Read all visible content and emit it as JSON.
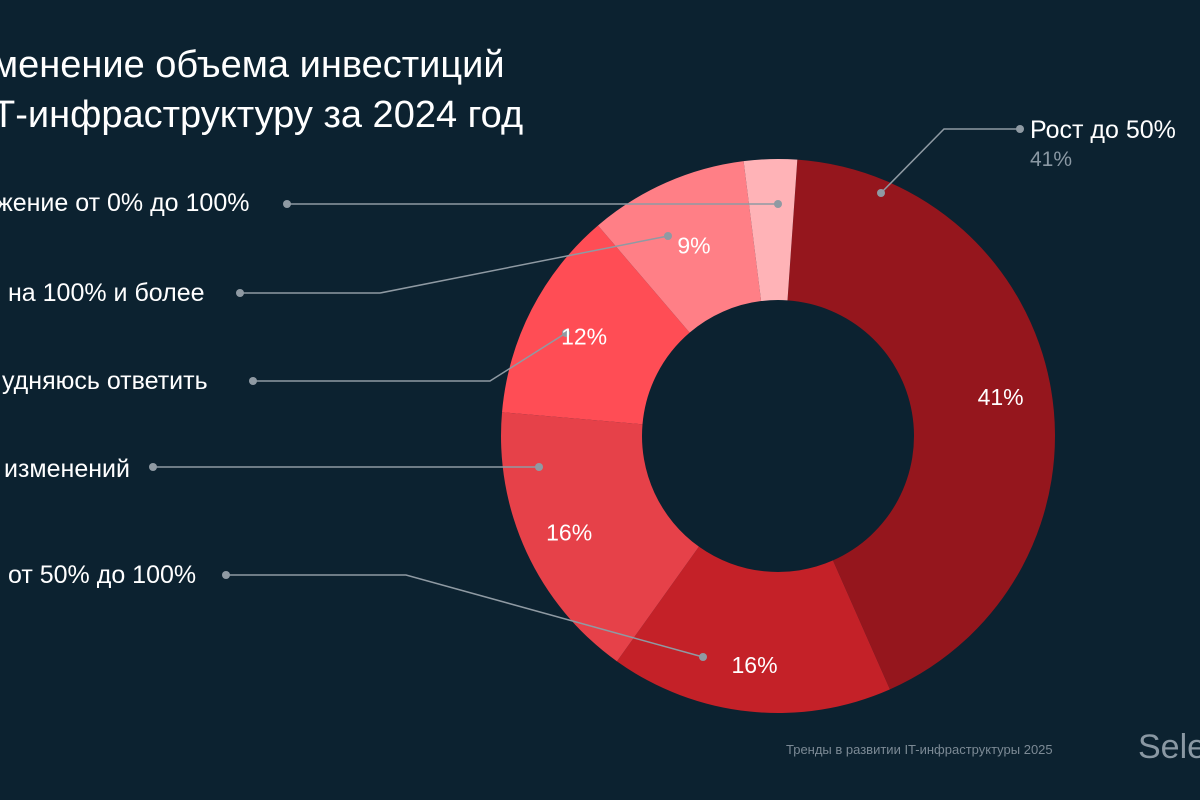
{
  "chart_data": {
    "type": "pie",
    "donut": true,
    "title_lines": [
      "менение объема инвестиций",
      "Т-инфраструктуру за 2024 год"
    ],
    "slices": [
      {
        "label": "Рост до 50%",
        "value": 41,
        "value_label": "41%",
        "color": "#95161d"
      },
      {
        "label": "от 50% до 100%",
        "value": 16,
        "value_label": "16%",
        "color": "#c42128"
      },
      {
        "label": "изменений",
        "value": 16,
        "value_label": "16%",
        "color": "#e64149"
      },
      {
        "label": "удняюсь ответить",
        "value": 12,
        "value_label": "12%",
        "color": "#ff4d55"
      },
      {
        "label": "на 100% и более",
        "value": 9,
        "value_label": "9%",
        "color": "#ff7f86"
      },
      {
        "label": "жение от 0% до 100%",
        "value": 3,
        "value_label": "",
        "color": "#ffb3b7"
      }
    ],
    "legend_extra": {
      "growth_sub": "41%"
    }
  },
  "footer": {
    "source": "Тренды в развитии IT-инфраструктуры 2025",
    "brand": "Sele"
  },
  "colors": {
    "background": "#0c2230",
    "leader": "#8f9aa3"
  }
}
